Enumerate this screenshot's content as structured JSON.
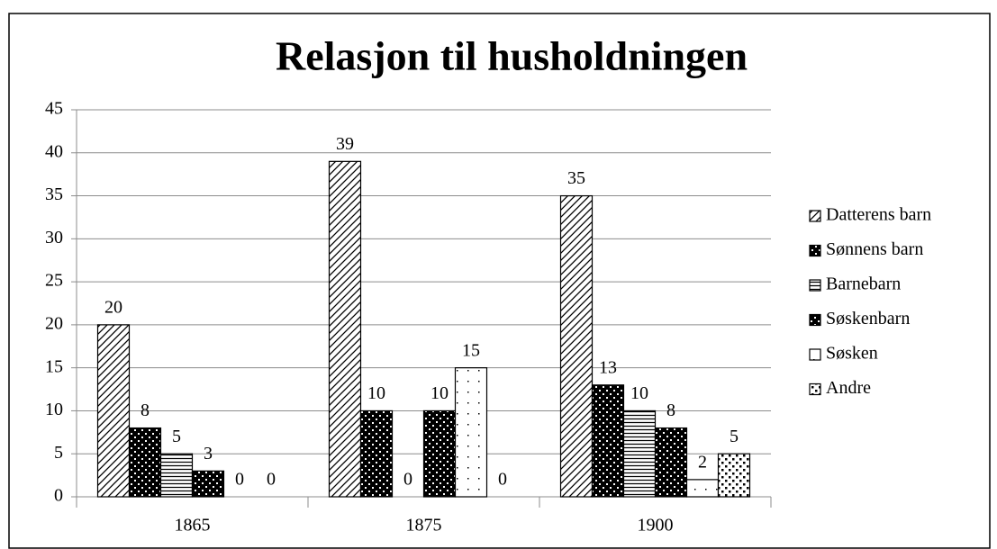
{
  "chart_data": {
    "type": "bar",
    "title": "Relasjon til husholdningen",
    "categories": [
      "1865",
      "1875",
      "1900"
    ],
    "series": [
      {
        "name": "Datterens barn",
        "color": "#000000",
        "values": [
          20,
          39,
          35
        ]
      },
      {
        "name": "Sønnens barn",
        "color": "#000000",
        "values": [
          8,
          10,
          13
        ]
      },
      {
        "name": "Barnebarn",
        "color": "#000000",
        "values": [
          5,
          0,
          10
        ]
      },
      {
        "name": "Søskenbarn",
        "color": "#000000",
        "values": [
          3,
          10,
          8
        ]
      },
      {
        "name": "Søsken",
        "color": "#000000",
        "values": [
          0,
          15,
          2
        ]
      },
      {
        "name": "Andre",
        "color": "#000000",
        "values": [
          0,
          0,
          5
        ]
      }
    ],
    "ylim": [
      0,
      45
    ],
    "yticks": [
      0,
      5,
      10,
      15,
      20,
      25,
      30,
      35,
      40,
      45
    ],
    "grid": true,
    "legend": "right"
  }
}
